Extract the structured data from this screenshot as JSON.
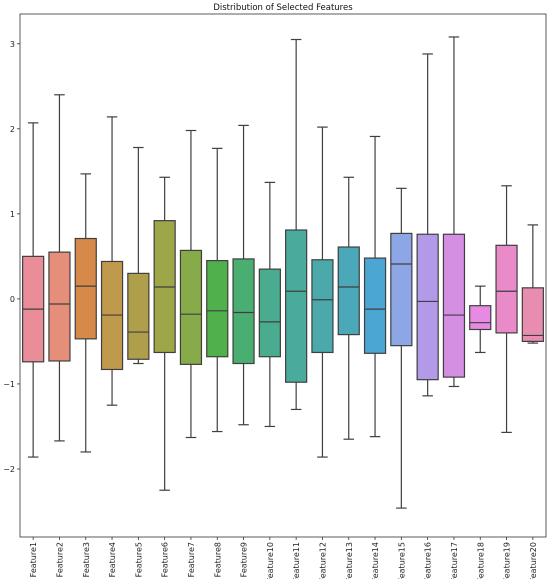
{
  "chart_data": {
    "type": "boxplot",
    "title": "Distribution of Selected Features",
    "xlabel": "",
    "ylabel": "",
    "ylim": [
      -2.8,
      3.35
    ],
    "yticks": [
      -2,
      -1,
      0,
      1,
      2,
      3
    ],
    "grid": false,
    "categories": [
      "Feature1",
      "Feature2",
      "Feature3",
      "Feature4",
      "Feature5",
      "Feature6",
      "Feature7",
      "Feature8",
      "Feature9",
      "Feature10",
      "Feature11",
      "Feature12",
      "Feature13",
      "Feature14",
      "Feature15",
      "Feature16",
      "Feature17",
      "Feature18",
      "Feature19",
      "Feature20"
    ],
    "boxes": [
      {
        "whisker_low": -1.86,
        "q1": -0.74,
        "median": -0.12,
        "q3": 0.5,
        "whisker_high": 2.07,
        "color": "#e98d98"
      },
      {
        "whisker_low": -1.67,
        "q1": -0.73,
        "median": -0.06,
        "q3": 0.55,
        "whisker_high": 2.4,
        "color": "#e58e7a"
      },
      {
        "whisker_low": -1.8,
        "q1": -0.47,
        "median": 0.15,
        "q3": 0.71,
        "whisker_high": 1.47,
        "color": "#d7894a"
      },
      {
        "whisker_low": -1.25,
        "q1": -0.83,
        "median": -0.19,
        "q3": 0.44,
        "whisker_high": 2.14,
        "color": "#c09a4c"
      },
      {
        "whisker_low": -0.76,
        "q1": -0.71,
        "median": -0.39,
        "q3": 0.3,
        "whisker_high": 1.78,
        "color": "#b09f4a"
      },
      {
        "whisker_low": -2.25,
        "q1": -0.63,
        "median": 0.14,
        "q3": 0.92,
        "whisker_high": 1.43,
        "color": "#9ea648"
      },
      {
        "whisker_low": -1.63,
        "q1": -0.77,
        "median": -0.18,
        "q3": 0.57,
        "whisker_high": 1.98,
        "color": "#87ab49"
      },
      {
        "whisker_low": -1.56,
        "q1": -0.68,
        "median": -0.14,
        "q3": 0.45,
        "whisker_high": 1.77,
        "color": "#50b04c"
      },
      {
        "whisker_low": -1.48,
        "q1": -0.76,
        "median": -0.16,
        "q3": 0.47,
        "whisker_high": 2.04,
        "color": "#4aae72"
      },
      {
        "whisker_low": -1.5,
        "q1": -0.68,
        "median": -0.27,
        "q3": 0.35,
        "whisker_high": 1.37,
        "color": "#49ac8e"
      },
      {
        "whisker_low": -1.3,
        "q1": -0.98,
        "median": 0.09,
        "q3": 0.81,
        "whisker_high": 3.05,
        "color": "#4aaa9c"
      },
      {
        "whisker_low": -1.86,
        "q1": -0.63,
        "median": -0.01,
        "q3": 0.46,
        "whisker_high": 2.02,
        "color": "#4ba9ab"
      },
      {
        "whisker_low": -1.65,
        "q1": -0.42,
        "median": 0.14,
        "q3": 0.61,
        "whisker_high": 1.43,
        "color": "#4aa8b8"
      },
      {
        "whisker_low": -1.62,
        "q1": -0.64,
        "median": -0.12,
        "q3": 0.48,
        "whisker_high": 1.91,
        "color": "#4ca6d4"
      },
      {
        "whisker_low": -2.46,
        "q1": -0.55,
        "median": 0.41,
        "q3": 0.77,
        "whisker_high": 1.3,
        "color": "#8da7e6"
      },
      {
        "whisker_low": -1.14,
        "q1": -0.95,
        "median": -0.03,
        "q3": 0.76,
        "whisker_high": 2.88,
        "color": "#b39ae9"
      },
      {
        "whisker_low": -1.03,
        "q1": -0.92,
        "median": -0.19,
        "q3": 0.76,
        "whisker_high": 3.08,
        "color": "#d48fe3"
      },
      {
        "whisker_low": -0.63,
        "q1": -0.36,
        "median": -0.28,
        "q3": -0.08,
        "whisker_high": 0.15,
        "color": "#e98ae2"
      },
      {
        "whisker_low": -1.57,
        "q1": -0.4,
        "median": 0.09,
        "q3": 0.63,
        "whisker_high": 1.33,
        "color": "#e98bc8"
      },
      {
        "whisker_low": -0.52,
        "q1": -0.5,
        "median": -0.43,
        "q3": 0.13,
        "whisker_high": 0.87,
        "color": "#e88cb0"
      }
    ]
  }
}
